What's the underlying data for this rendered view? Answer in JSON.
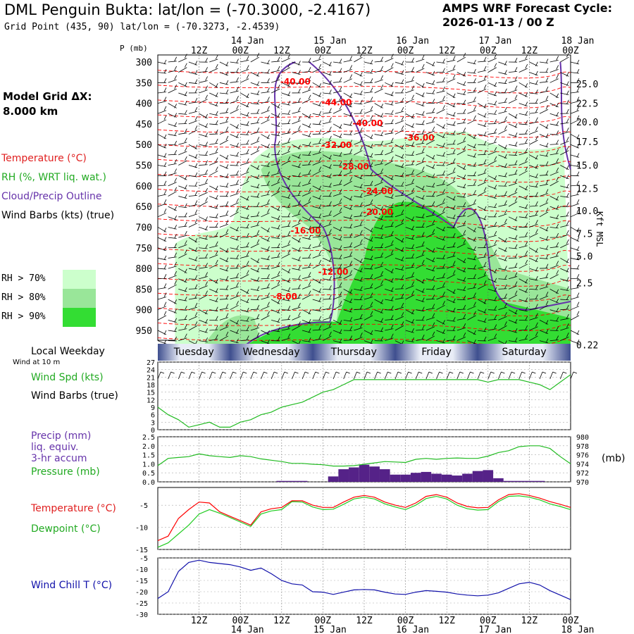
{
  "header": {
    "title": "DML Penguin Bukta:  lat/lon = (-70.3000, -2.4167)",
    "subtitle": "Grid Point (435, 90) lat/lon = (-70.3273, -2.4539)",
    "forecast_line1": "AMPS WRF Forecast Cycle:",
    "forecast_line2": "2026-01-13 / 00  Z",
    "model_grid_line1": "Model Grid ΔX:",
    "model_grid_line2": " 8.000 km"
  },
  "legend": {
    "temperature": "Temperature (°C)",
    "rh": "RH (%, WRT liq. wat.)",
    "cloud": "Cloud/Precip Outline",
    "wind_barbs": "Wind Barbs (kts) (true)",
    "rh70": "RH > 70%",
    "rh80": "RH > 80%",
    "rh90": "RH > 90%",
    "local_weekday": "Local Weekday",
    "wind_at": "Wind at 10 m",
    "wind_spd": "Wind Spd (kts)",
    "wind_barbs2": "Wind Barbs (true)",
    "precip1": "Precip (mm)",
    "precip2": "liq. equiv.",
    "precip3": "3-hr accum",
    "pressure": "Pressure (mb)",
    "temp2": "Temperature (°C)",
    "dewpoint": "Dewpoint (°C)",
    "windchill": "Wind Chill T (°C)",
    "mb_unit": "(mb)",
    "p_unit": "P (mb)",
    "kft_unit": "Kft MSL"
  },
  "colors": {
    "temp": "#ff0000",
    "rh70": "#ccffcc",
    "rh80": "#99e699",
    "rh90": "#33dd33",
    "cloud": "#6633aa",
    "precip": "#552288",
    "pressure": "#22bb22",
    "windchill": "#1111aa",
    "dewpoint": "#22cc22"
  },
  "chart_data": {
    "type": "meteogram",
    "time_axis": {
      "hours": [
        12,
        24,
        36,
        48,
        60,
        72,
        84,
        96,
        108,
        120
      ],
      "top_labels": [
        "12Z",
        "00Z",
        "12Z",
        "00Z",
        "12Z",
        "00Z",
        "12Z",
        "00Z",
        "12Z",
        "00Z"
      ],
      "date_labels": [
        {
          "hour": 24,
          "text": "14 Jan"
        },
        {
          "hour": 48,
          "text": "15 Jan"
        },
        {
          "hour": 72,
          "text": "16 Jan"
        },
        {
          "hour": 96,
          "text": "17 Jan"
        },
        {
          "hour": 120,
          "text": "18 Jan"
        }
      ],
      "range_hours": [
        0,
        120
      ]
    },
    "weekdays": [
      {
        "name": "Tuesday",
        "start": 0,
        "end": 21
      },
      {
        "name": "Wednesday",
        "start": 21,
        "end": 45
      },
      {
        "name": "Thursday",
        "start": 45,
        "end": 69
      },
      {
        "name": "Friday",
        "start": 69,
        "end": 93
      },
      {
        "name": "Saturday",
        "start": 93,
        "end": 120
      }
    ],
    "cross_section": {
      "pressure_levels": [
        300,
        350,
        400,
        450,
        500,
        550,
        600,
        650,
        700,
        750,
        800,
        850,
        900,
        950
      ],
      "kft_labels": [
        25.0,
        22.5,
        20.0,
        17.5,
        15.0,
        12.5,
        10.0,
        7.5,
        5.0,
        2.5,
        0.22
      ],
      "kft_pressure": [
        353,
        400,
        445,
        493,
        550,
        606,
        660,
        715,
        770,
        835,
        985
      ],
      "temperature_labels": [
        {
          "text": "-40.00",
          "hour": 40,
          "p": 355
        },
        {
          "text": "-44.00",
          "hour": 52,
          "p": 405
        },
        {
          "text": "-40.00",
          "hour": 61,
          "p": 455
        },
        {
          "text": "-36.00",
          "hour": 76,
          "p": 490
        },
        {
          "text": "-32.00",
          "hour": 52,
          "p": 508
        },
        {
          "text": "-28.00",
          "hour": 57,
          "p": 560
        },
        {
          "text": "-24.00",
          "hour": 64,
          "p": 620
        },
        {
          "text": "-20.00",
          "hour": 64,
          "p": 670
        },
        {
          "text": "-16.00",
          "hour": 43,
          "p": 715
        },
        {
          "text": "-12.00",
          "hour": 51,
          "p": 815
        },
        {
          "text": "-8.00",
          "hour": 37,
          "p": 875
        }
      ]
    },
    "wind_speed": {
      "yticks": [
        0,
        3,
        6,
        9,
        12,
        15,
        18,
        21,
        24,
        27
      ],
      "hours": [
        0,
        3,
        6,
        9,
        12,
        15,
        18,
        21,
        24,
        27,
        30,
        33,
        36,
        39,
        42,
        45,
        48,
        51,
        54,
        57,
        60,
        63,
        66,
        69,
        72,
        75,
        78,
        81,
        84,
        87,
        90,
        93,
        96,
        99,
        102,
        105,
        108,
        111,
        114,
        117,
        120
      ],
      "values": [
        9,
        6,
        4,
        1,
        2,
        3,
        1,
        1,
        3,
        4,
        6,
        7,
        9,
        10,
        11,
        13,
        15,
        16,
        18,
        20,
        20,
        20,
        20,
        20,
        20,
        20,
        20,
        20,
        20,
        20,
        20,
        20,
        19,
        20,
        20,
        20,
        19,
        18,
        16,
        19,
        22
      ]
    },
    "precip_pressure": {
      "precip_yticks": [
        0.0,
        0.5,
        1.0,
        1.5,
        2.0,
        2.5
      ],
      "pressure_yticks": [
        970,
        972,
        974,
        976,
        978,
        980
      ],
      "hours": [
        0,
        3,
        6,
        9,
        12,
        15,
        18,
        21,
        24,
        27,
        30,
        33,
        36,
        39,
        42,
        45,
        48,
        51,
        54,
        57,
        60,
        63,
        66,
        69,
        72,
        75,
        78,
        81,
        84,
        87,
        90,
        93,
        96,
        99,
        102,
        105,
        108,
        111,
        114,
        117,
        120
      ],
      "pressure": [
        973.6,
        975.2,
        975.4,
        975.6,
        976.2,
        975.8,
        975.6,
        975.4,
        975.8,
        975.6,
        975.1,
        974.8,
        974.5,
        974.1,
        974.1,
        973.9,
        973.8,
        973.5,
        973.5,
        973.6,
        973.9,
        974.2,
        974.5,
        974.4,
        974.3,
        975.0,
        975.2,
        975.0,
        975.2,
        975.3,
        975.2,
        975.2,
        975.7,
        976.5,
        976.9,
        977.8,
        978.0,
        978.0,
        977.4,
        975.6,
        974.0
      ],
      "precip_bins": [
        {
          "hour": 36,
          "value": 0.05
        },
        {
          "hour": 39,
          "value": 0.05
        },
        {
          "hour": 42,
          "value": 0.05
        },
        {
          "hour": 51,
          "value": 0.3
        },
        {
          "hour": 54,
          "value": 0.7
        },
        {
          "hour": 57,
          "value": 0.8
        },
        {
          "hour": 60,
          "value": 0.95
        },
        {
          "hour": 63,
          "value": 0.85
        },
        {
          "hour": 66,
          "value": 0.7
        },
        {
          "hour": 69,
          "value": 0.4
        },
        {
          "hour": 72,
          "value": 0.4
        },
        {
          "hour": 75,
          "value": 0.5
        },
        {
          "hour": 78,
          "value": 0.55
        },
        {
          "hour": 81,
          "value": 0.45
        },
        {
          "hour": 84,
          "value": 0.4
        },
        {
          "hour": 87,
          "value": 0.35
        },
        {
          "hour": 90,
          "value": 0.45
        },
        {
          "hour": 93,
          "value": 0.6
        },
        {
          "hour": 96,
          "value": 0.65
        },
        {
          "hour": 99,
          "value": 0.2
        },
        {
          "hour": 102,
          "value": 0.05
        },
        {
          "hour": 105,
          "value": 0.05
        },
        {
          "hour": 108,
          "value": 0.05
        },
        {
          "hour": 111,
          "value": 0.05
        }
      ]
    },
    "temp_dew": {
      "yticks": [
        -15,
        -10,
        -5
      ],
      "ylim": [
        -15,
        -1
      ],
      "hours": [
        0,
        3,
        6,
        9,
        12,
        15,
        18,
        21,
        24,
        27,
        30,
        33,
        36,
        39,
        42,
        45,
        48,
        51,
        54,
        57,
        60,
        63,
        66,
        69,
        72,
        75,
        78,
        81,
        84,
        87,
        90,
        93,
        96,
        99,
        102,
        105,
        108,
        111,
        114,
        117,
        120
      ],
      "temperature": [
        -13,
        -12,
        -8,
        -6,
        -4.3,
        -4.5,
        -6.5,
        -7.5,
        -8.5,
        -9.5,
        -6.5,
        -5.8,
        -5.5,
        -4.0,
        -4.0,
        -5.0,
        -5.5,
        -5.5,
        -4.3,
        -3.2,
        -2.8,
        -3.2,
        -4.3,
        -5.0,
        -5.5,
        -4.5,
        -3.0,
        -2.6,
        -3.2,
        -4.5,
        -5.3,
        -5.6,
        -5.5,
        -3.8,
        -2.6,
        -2.4,
        -2.8,
        -3.4,
        -4.2,
        -4.8,
        -5.5
      ],
      "dewpoint": [
        -14.5,
        -13.5,
        -11.5,
        -9.5,
        -7.0,
        -6.0,
        -6.8,
        -7.8,
        -8.8,
        -9.8,
        -7.0,
        -6.3,
        -6.0,
        -4.2,
        -4.3,
        -5.4,
        -6.0,
        -5.9,
        -4.8,
        -3.6,
        -3.2,
        -3.6,
        -4.7,
        -5.4,
        -6.0,
        -5.0,
        -3.5,
        -3.0,
        -3.6,
        -5.0,
        -5.8,
        -6.1,
        -6.0,
        -4.2,
        -3.0,
        -2.9,
        -3.2,
        -3.8,
        -4.7,
        -5.3,
        -6.0
      ]
    },
    "wind_chill": {
      "yticks": [
        -30,
        -25,
        -20,
        -15,
        -10,
        -5
      ],
      "ylim": [
        -30,
        -5
      ],
      "hours": [
        0,
        3,
        6,
        9,
        12,
        15,
        18,
        21,
        24,
        27,
        30,
        33,
        36,
        39,
        42,
        45,
        48,
        51,
        54,
        57,
        60,
        63,
        66,
        69,
        72,
        75,
        78,
        81,
        84,
        87,
        90,
        93,
        96,
        99,
        102,
        105,
        108,
        111,
        114,
        117,
        120
      ],
      "values": [
        -23,
        -20,
        -11,
        -7,
        -6,
        -7,
        -7.5,
        -8,
        -9,
        -10.5,
        -9.5,
        -12,
        -15,
        -16.5,
        -17,
        -20,
        -20.2,
        -21.2,
        -20.2,
        -19.2,
        -19.0,
        -19.2,
        -20.2,
        -21.0,
        -21.2,
        -20.2,
        -19.5,
        -19.8,
        -20.2,
        -21.0,
        -21.5,
        -21.8,
        -21.5,
        -20.5,
        -18.5,
        -16.5,
        -15.8,
        -17.0,
        -19.5,
        -21.5,
        -23.5
      ]
    }
  }
}
